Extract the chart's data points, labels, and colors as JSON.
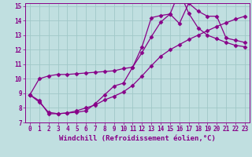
{
  "bg_color": "#c0dfe0",
  "line_color": "#880088",
  "grid_color": "#a0c8c8",
  "xlabel": "Windchill (Refroidissement éolien,°C)",
  "xlim": [
    -0.5,
    23.5
  ],
  "ylim": [
    7,
    15.2
  ],
  "yticks": [
    7,
    8,
    9,
    10,
    11,
    12,
    13,
    14,
    15
  ],
  "xticks": [
    0,
    1,
    2,
    3,
    4,
    5,
    6,
    7,
    8,
    9,
    10,
    11,
    12,
    13,
    14,
    15,
    16,
    17,
    18,
    19,
    20,
    21,
    22,
    23
  ],
  "line1_x": [
    0,
    1,
    2,
    3,
    4,
    5,
    6,
    7,
    8,
    9,
    10,
    11,
    12,
    13,
    14,
    15,
    16,
    17,
    18,
    19,
    20,
    21,
    22,
    23
  ],
  "line1_y": [
    8.9,
    10.0,
    10.2,
    10.3,
    10.3,
    10.35,
    10.4,
    10.45,
    10.5,
    10.55,
    10.7,
    10.8,
    12.2,
    14.2,
    14.35,
    14.45,
    13.8,
    15.2,
    14.65,
    14.3,
    14.3,
    12.8,
    12.65,
    12.5
  ],
  "line2_x": [
    0,
    1,
    2,
    3,
    4,
    5,
    6,
    7,
    8,
    9,
    10,
    11,
    12,
    13,
    14,
    15,
    16,
    17,
    18,
    19,
    20,
    21,
    22,
    23
  ],
  "line2_y": [
    8.9,
    8.5,
    7.6,
    7.6,
    7.65,
    7.7,
    7.8,
    8.3,
    8.9,
    9.5,
    9.7,
    10.8,
    11.8,
    12.9,
    13.9,
    14.45,
    16.0,
    14.5,
    13.5,
    13.0,
    12.75,
    12.5,
    12.3,
    12.2
  ],
  "line3_x": [
    0,
    1,
    2,
    3,
    4,
    5,
    6,
    7,
    8,
    9,
    10,
    11,
    12,
    13,
    14,
    15,
    16,
    17,
    18,
    19,
    20,
    21,
    22,
    23
  ],
  "line3_y": [
    8.9,
    8.4,
    7.7,
    7.6,
    7.65,
    7.8,
    8.0,
    8.2,
    8.55,
    8.8,
    9.1,
    9.55,
    10.2,
    10.9,
    11.55,
    12.0,
    12.35,
    12.7,
    13.0,
    13.3,
    13.6,
    13.85,
    14.1,
    14.3
  ],
  "marker": "D",
  "markersize": 2.5,
  "linewidth": 0.9,
  "tick_fontsize": 5.5,
  "xlabel_fontsize": 6.5
}
